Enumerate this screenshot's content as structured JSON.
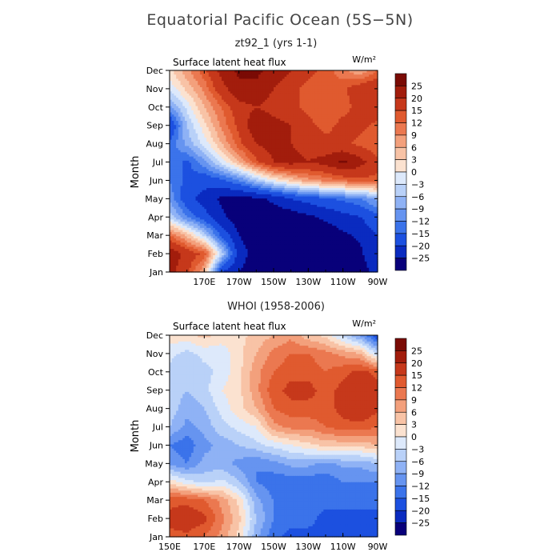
{
  "figure": {
    "title": "Equatorial Pacific Ocean (5S−5N)"
  },
  "colors": {
    "levels": [
      "#08007a",
      "#0a2bc0",
      "#1c50e0",
      "#3b73ea",
      "#6694f0",
      "#8fb2f5",
      "#b9d1f8",
      "#dde9fb",
      "#fbe2d0",
      "#f8c3a6",
      "#f3a07c",
      "#eb7850",
      "#e05a2f",
      "#c6381b",
      "#a21d0c",
      "#7a0b05"
    ],
    "frame": "#000000"
  },
  "chart_data": [
    {
      "type": "heatmap",
      "title": "zt92_1 (yrs 1-1)",
      "panel_label": "Surface latent heat flux",
      "units": "W/m²",
      "ylabel": "Month",
      "y_ticks": [
        "Jan",
        "Feb",
        "Mar",
        "Apr",
        "May",
        "Jun",
        "Jul",
        "Aug",
        "Sep",
        "Oct",
        "Nov",
        "Dec"
      ],
      "x_ticks": [
        "170E",
        "170W",
        "150W",
        "130W",
        "110W",
        "90W"
      ],
      "xlim": [
        150,
        270
      ],
      "contour_levels": [
        -25,
        -20,
        -15,
        -12,
        -9,
        -6,
        -3,
        0,
        3,
        6,
        9,
        12,
        15,
        20,
        25
      ],
      "colorbar_labels": [
        "25",
        "20",
        "15",
        "12",
        "9",
        "6",
        "3",
        "0",
        "−3",
        "−6",
        "−9",
        "−12",
        "−15",
        "−20",
        "−25"
      ],
      "x": [
        150,
        160,
        170,
        180,
        190,
        200,
        210,
        220,
        230,
        240,
        250,
        260,
        270
      ],
      "months": [
        "Jan",
        "Feb",
        "Mar",
        "Apr",
        "May",
        "Jun",
        "Jul",
        "Aug",
        "Sep",
        "Oct",
        "Nov",
        "Dec"
      ],
      "values": [
        [
          22,
          16,
          6,
          -20,
          -25,
          -28,
          -28,
          -28,
          -28,
          -28,
          -28,
          -28,
          -22
        ],
        [
          24,
          18,
          14,
          -4,
          -22,
          -28,
          -28,
          -28,
          -28,
          -28,
          -28,
          -26,
          -20
        ],
        [
          12,
          5,
          -4,
          -16,
          -25,
          -28,
          -28,
          -28,
          -28,
          -28,
          -26,
          -24,
          -20
        ],
        [
          -4,
          -12,
          -18,
          -24,
          -28,
          -28,
          -28,
          -28,
          -26,
          -24,
          -22,
          -20,
          -16
        ],
        [
          -10,
          -18,
          -22,
          -26,
          -27,
          -26,
          -24,
          -20,
          -18,
          -16,
          -14,
          -12,
          -8
        ],
        [
          -12,
          -16,
          -18,
          -16,
          -12,
          -6,
          0,
          4,
          8,
          10,
          12,
          14,
          14
        ],
        [
          -12,
          -16,
          -10,
          -2,
          6,
          14,
          20,
          22,
          20,
          22,
          26,
          22,
          16
        ],
        [
          -14,
          -8,
          -2,
          6,
          14,
          20,
          22,
          20,
          18,
          16,
          16,
          14,
          12
        ],
        [
          -20,
          -6,
          2,
          10,
          16,
          24,
          22,
          20,
          16,
          14,
          16,
          16,
          14
        ],
        [
          -10,
          -2,
          6,
          12,
          18,
          20,
          18,
          16,
          14,
          12,
          14,
          16,
          18
        ],
        [
          -2,
          4,
          10,
          18,
          24,
          24,
          20,
          16,
          14,
          12,
          14,
          18,
          20
        ],
        [
          2,
          8,
          14,
          22,
          26,
          26,
          24,
          20,
          16,
          14,
          10,
          6,
          12
        ]
      ]
    },
    {
      "type": "heatmap",
      "title": "WHOI (1958-2006)",
      "panel_label": "Surface latent heat flux",
      "units": "W/m²",
      "ylabel": "Month",
      "y_ticks": [
        "Jan",
        "Feb",
        "Mar",
        "Apr",
        "May",
        "Jun",
        "Jul",
        "Aug",
        "Sep",
        "Oct",
        "Nov",
        "Dec"
      ],
      "x_ticks": [
        "150E",
        "170E",
        "170W",
        "150W",
        "130W",
        "110W",
        "90W"
      ],
      "xlim": [
        150,
        270
      ],
      "contour_levels": [
        -25,
        -20,
        -15,
        -12,
        -9,
        -6,
        -3,
        0,
        3,
        6,
        9,
        12,
        15,
        20,
        25
      ],
      "colorbar_labels": [
        "25",
        "20",
        "15",
        "12",
        "9",
        "6",
        "3",
        "0",
        "−3",
        "−6",
        "−9",
        "−12",
        "−15",
        "−20",
        "−25"
      ],
      "x": [
        150,
        160,
        170,
        180,
        190,
        200,
        210,
        220,
        230,
        240,
        250,
        260,
        270
      ],
      "months": [
        "Jan",
        "Feb",
        "Mar",
        "Apr",
        "May",
        "Jun",
        "Jul",
        "Aug",
        "Sep",
        "Oct",
        "Nov",
        "Dec"
      ],
      "values": [
        [
          14,
          14,
          12,
          8,
          2,
          -8,
          -14,
          -16,
          -16,
          -16,
          -18,
          -18,
          -20
        ],
        [
          16,
          18,
          16,
          10,
          4,
          -6,
          -12,
          -14,
          -14,
          -16,
          -16,
          -16,
          -16
        ],
        [
          14,
          14,
          12,
          8,
          2,
          -8,
          -12,
          -14,
          -14,
          -14,
          -14,
          -14,
          -14
        ],
        [
          2,
          -2,
          -4,
          -2,
          -6,
          -12,
          -14,
          -14,
          -14,
          -14,
          -12,
          -12,
          -12
        ],
        [
          -10,
          -12,
          -8,
          -8,
          -10,
          -12,
          -10,
          -8,
          -8,
          -10,
          -8,
          -8,
          -6
        ],
        [
          -12,
          -14,
          -10,
          -8,
          -6,
          -4,
          -2,
          0,
          2,
          4,
          4,
          4,
          6
        ],
        [
          -6,
          -10,
          -8,
          -4,
          -2,
          0,
          8,
          10,
          10,
          12,
          14,
          14,
          12
        ],
        [
          -4,
          -8,
          -6,
          -2,
          2,
          6,
          12,
          14,
          14,
          14,
          16,
          18,
          16
        ],
        [
          -4,
          -6,
          -4,
          0,
          2,
          8,
          14,
          16,
          16,
          14,
          16,
          20,
          16
        ],
        [
          -4,
          -6,
          -4,
          -2,
          2,
          8,
          12,
          14,
          14,
          12,
          14,
          16,
          14
        ],
        [
          -2,
          -4,
          -2,
          -2,
          2,
          6,
          10,
          12,
          12,
          10,
          8,
          6,
          -4
        ],
        [
          2,
          2,
          4,
          2,
          2,
          4,
          6,
          8,
          4,
          2,
          -4,
          -10,
          -18
        ]
      ]
    }
  ]
}
